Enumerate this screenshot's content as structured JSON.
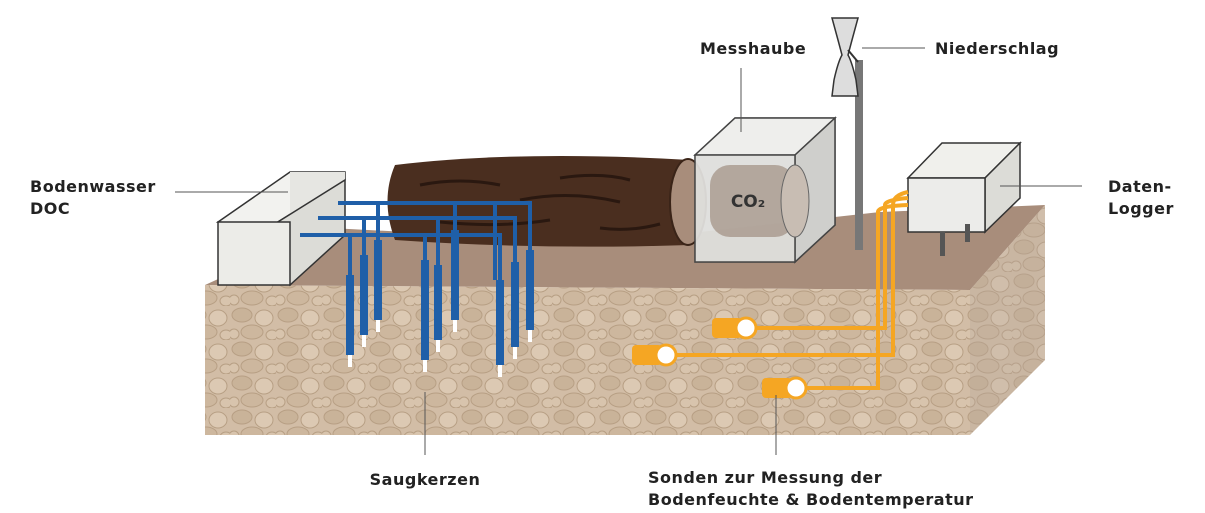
{
  "labels": {
    "messhaube": "Messhaube",
    "niederschlag": "Niederschlag",
    "bodenwasser": [
      "Bodenwasser",
      "DOC"
    ],
    "datenlogger": [
      "Daten-",
      "Logger"
    ],
    "saugkerzen": "Saugkerzen",
    "sonden": [
      "Sonden zur Messung der",
      "Bodenfeuchte & Bodentemperatur"
    ],
    "co2": "CO₂"
  }
}
